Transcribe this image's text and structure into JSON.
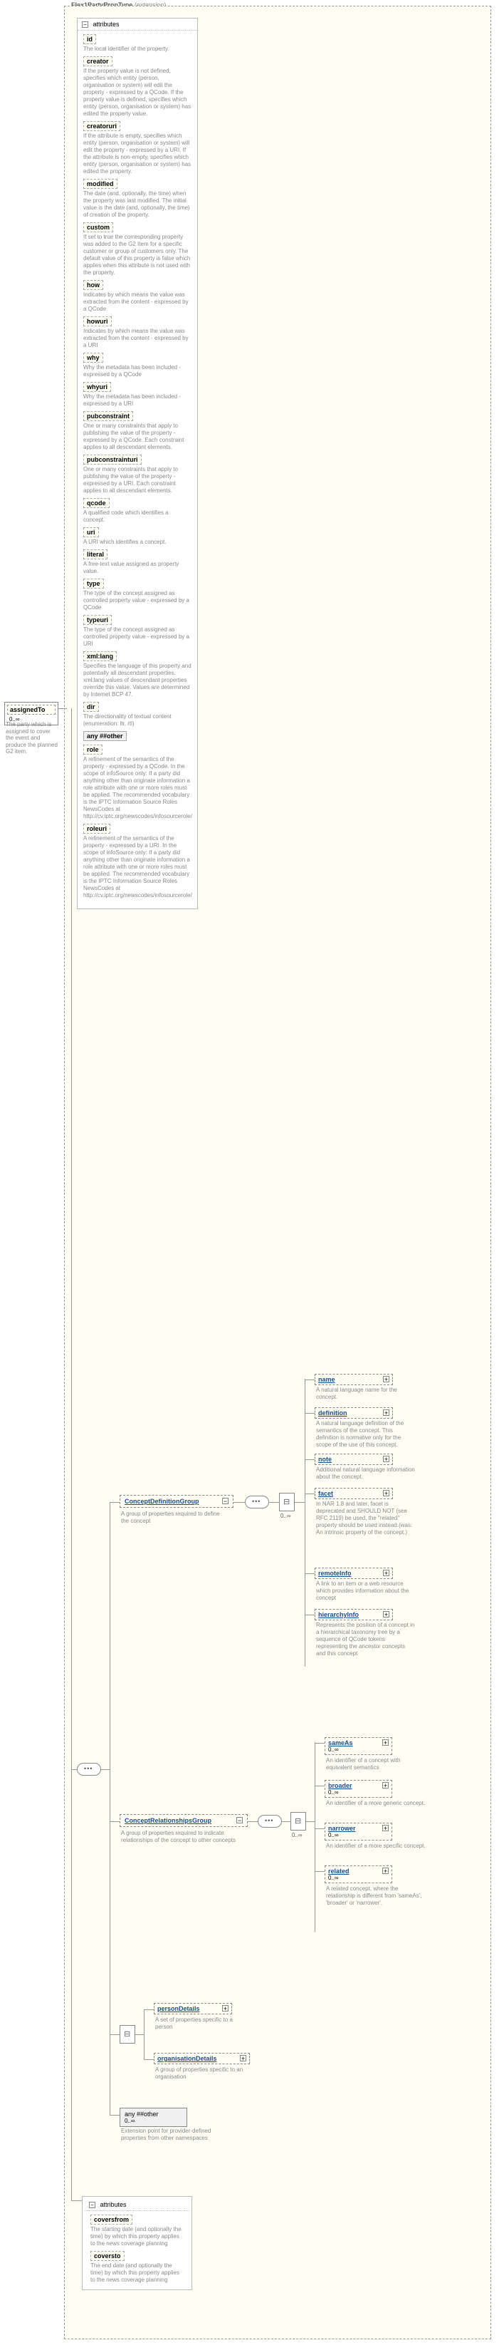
{
  "mainTitle": "Flex1PartyPropType",
  "mainTitleExt": "(extension)",
  "assignedTo": {
    "name": "assignedTo",
    "range": "0..∞",
    "desc": "The party which is assigned to cover the event and produce the planned G2 item."
  },
  "attrHeader": "attributes",
  "attrs": [
    {
      "name": "id",
      "desc": "The local identifier of the property."
    },
    {
      "name": "creator",
      "desc": "If the property value is not defined, specifies which entity (person, organisation or system) will edit the property - expressed by a QCode. If the property value is defined, specifies which entity (person, organisation or system) has edited the property value."
    },
    {
      "name": "creatoruri",
      "desc": "If the attribute is empty, specifies which entity (person, organisation or system) will edit the property - expressed by a URI. If the attribute is non-empty, specifies which entity (person, organisation or system) has edited the property."
    },
    {
      "name": "modified",
      "desc": "The date (and, optionally, the time) when the property was last modified. The initial value is the date (and, optionally, the time) of creation of the property."
    },
    {
      "name": "custom",
      "desc": "If set to true the corresponding property was added to the G2 Item for a specific customer or group of customers only. The default value of this property is false which applies when this attribute is not used with the property."
    },
    {
      "name": "how",
      "desc": "Indicates by which means the value was extracted from the content - expressed by a QCode"
    },
    {
      "name": "howuri",
      "desc": "Indicates by which means the value was extracted from the content - expressed by a URI"
    },
    {
      "name": "why",
      "desc": "Why the metadata has been included - expressed by a QCode"
    },
    {
      "name": "whyuri",
      "desc": "Why the metadata has been included - expressed by a URI"
    },
    {
      "name": "pubconstraint",
      "desc": "One or many constraints that apply to publishing the value of the property - expressed by a QCode. Each constraint applies to all descendant elements."
    },
    {
      "name": "pubconstrainturi",
      "desc": "One or many constraints that apply to publishing the value of the property - expressed by a URI. Each constraint applies to all descendant elements."
    },
    {
      "name": "qcode",
      "desc": "A qualified code which identifies a concept."
    },
    {
      "name": "uri",
      "desc": "A URI which identifies a concept."
    },
    {
      "name": "literal",
      "desc": "A free-text value assigned as property value."
    },
    {
      "name": "type",
      "desc": "The type of the concept assigned as controlled property value - expressed by a QCode"
    },
    {
      "name": "typeuri",
      "desc": "The type of the concept assigned as controlled property value - expressed by a URI"
    },
    {
      "name": "xml:lang",
      "desc": "Specifies the language of this property and potentially all descendant properties. xml:lang values of descendant properties override this value. Values are determined by Internet BCP 47."
    },
    {
      "name": "dir",
      "desc": "The directionality of textual content (enumeration: ltr, rtl)"
    },
    {
      "name": "any ##other",
      "isAny": true
    },
    {
      "name": "role",
      "desc": "A refinement of the semantics of the property - expressed by a QCode. In the scope of infoSource only: If a party did anything other than originate information a role attribute with one or more roles must be applied. The recommended vocabulary is the IPTC Information Source Roles NewsCodes at http://cv.iptc.org/newscodes/infosourcerole/"
    },
    {
      "name": "roleuri",
      "desc": "A refinement of the semantics of the property - expressed by a URI. In the scope of infoSource only: If a party did anything other than originate information a role attribute with one or more roles must be applied. The recommended vocabulary is the IPTC Information Source Roles NewsCodes at http://cv.iptc.org/newscodes/infosourcerole/"
    }
  ],
  "groups": {
    "cdg": {
      "name": "ConceptDefinitionGroup",
      "desc": "A group of properties required to define the concept"
    },
    "crg": {
      "name": "ConceptRelationshipsGroup",
      "desc": "A group of properties required to indicate relationships of the concept to other concepts"
    }
  },
  "defElems": [
    {
      "name": "name",
      "desc": "A natural language name for the concept."
    },
    {
      "name": "definition",
      "desc": "A natural language definition of the semantics of the concept. This definition is normative only for the scope of the use of this concept."
    },
    {
      "name": "note",
      "desc": "Additional natural language information about the concept."
    },
    {
      "name": "facet",
      "desc": "In NAR 1.8 and later, facet is deprecated and SHOULD NOT (see RFC 2119) be used, the \"related\" property should be used instead.(was: An intrinsic property of the concept.)"
    },
    {
      "name": "remoteInfo",
      "desc": "A link to an item or a web resource which provides information about the concept"
    },
    {
      "name": "hierarchyInfo",
      "desc": "Represents the position of a concept in a hierarchical taxonomy tree by a sequence of QCode tokens representing the ancestor concepts and this concept"
    }
  ],
  "relElems": [
    {
      "name": "sameAs",
      "desc": "An identifier of a concept with equivalent semantics"
    },
    {
      "name": "broader",
      "desc": "An identifier of a more generic concept."
    },
    {
      "name": "narrower",
      "desc": "An identifier of a more specific concept."
    },
    {
      "name": "related",
      "desc": "A related concept, where the relationship is different from 'sameAs', 'broader' or 'narrower'."
    }
  ],
  "persOrg": {
    "person": {
      "name": "personDetails",
      "desc": "A set of properties specific to a person"
    },
    "org": {
      "name": "organisationDetails",
      "desc": "A group of properties specific to an organisation"
    }
  },
  "anyOther": {
    "name": "any ##other",
    "range": "0..∞",
    "desc": "Extension point for provider-defined properties from other namespaces"
  },
  "bottomAttrs": {
    "header": "attributes",
    "items": [
      {
        "name": "coversfrom",
        "desc": "The starting date (and optionally the time) by which this property applies to the news coverage planning"
      },
      {
        "name": "coversto",
        "desc": "The end date (and optionally the time) by which this property applies to the news coverage planning"
      }
    ]
  },
  "ranges": {
    "zinf": "0..∞"
  },
  "colors": {
    "border": "#888888",
    "dashBg": "#fffef5",
    "link": "#1a4d8f",
    "descText": "#888888"
  }
}
